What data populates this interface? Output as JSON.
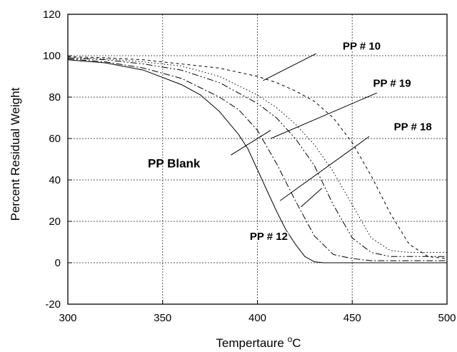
{
  "chart_data": {
    "type": "line",
    "title": "",
    "xlabel": "Tempertaure",
    "xlabel_unit": "°C",
    "ylabel": "Percent Residual Weight",
    "xlim": [
      300,
      500
    ],
    "ylim": [
      -20,
      120
    ],
    "x_ticks": [
      300,
      350,
      400,
      450,
      500
    ],
    "y_ticks": [
      -20,
      0,
      20,
      40,
      60,
      80,
      100,
      120
    ],
    "grid": true,
    "legend": "none",
    "series": [
      {
        "name": "PP Blank",
        "dash": "solid",
        "x": [
          300,
          320,
          340,
          360,
          370,
          380,
          390,
          395,
          400,
          405,
          410,
          415,
          420,
          425,
          430,
          435,
          440,
          450,
          500
        ],
        "y": [
          98,
          96.5,
          93,
          86,
          81,
          73,
          62,
          55,
          45,
          35,
          25,
          16,
          9,
          3,
          0.5,
          0,
          0,
          0,
          0
        ]
      },
      {
        "name": "PP # 12",
        "dash": "dashdot",
        "x": [
          300,
          320,
          340,
          360,
          380,
          390,
          400,
          410,
          420,
          430,
          440,
          450,
          460,
          500
        ],
        "y": [
          98.5,
          97,
          94,
          89,
          80,
          74,
          64,
          48,
          30,
          13,
          4,
          2,
          1,
          1
        ]
      },
      {
        "name": "PP # 18",
        "dash": "dashdotdot",
        "x": [
          300,
          320,
          340,
          360,
          380,
          400,
          410,
          420,
          430,
          440,
          450,
          460,
          470,
          500
        ],
        "y": [
          99,
          98,
          96,
          93,
          87,
          77,
          70,
          60,
          47,
          28,
          12,
          5,
          3,
          3
        ]
      },
      {
        "name": "PP # 19",
        "dash": "dotted",
        "x": [
          300,
          320,
          340,
          360,
          380,
          400,
          410,
          420,
          430,
          440,
          450,
          460,
          470,
          480,
          500
        ],
        "y": [
          99,
          98.5,
          97,
          95,
          90,
          81,
          75,
          67,
          57,
          44,
          28,
          12,
          6,
          5,
          5
        ]
      },
      {
        "name": "PP # 10",
        "dash": "shortdash",
        "x": [
          300,
          320,
          340,
          360,
          380,
          400,
          410,
          420,
          430,
          440,
          450,
          460,
          470,
          480,
          490,
          500
        ],
        "y": [
          99.5,
          99,
          98,
          96,
          94,
          90,
          87,
          83,
          78,
          70,
          58,
          42,
          24,
          9,
          3,
          2
        ]
      }
    ],
    "annotations": [
      {
        "text": "PP # 10",
        "x": 455,
        "y": 103,
        "size": 15,
        "pointer": [
          [
            431,
            101
          ],
          [
            403,
            88
          ]
        ]
      },
      {
        "text": "PP # 19",
        "x": 471,
        "y": 85,
        "size": 15,
        "pointer": [
          [
            463,
            82
          ],
          [
            407,
            60
          ]
        ]
      },
      {
        "text": "PP # 18",
        "x": 482,
        "y": 64,
        "size": 15,
        "pointer": [
          [
            459,
            61
          ],
          [
            412,
            30
          ]
        ]
      },
      {
        "text": "PP Blank",
        "x": 356,
        "y": 46,
        "size": 17,
        "pointer": [
          [
            386,
            52
          ],
          [
            407,
            64
          ]
        ]
      },
      {
        "text": "PP # 12",
        "x": 406,
        "y": 11,
        "size": 15,
        "pointer": [
          [
            434,
            36
          ],
          [
            423,
            27
          ]
        ]
      }
    ]
  }
}
